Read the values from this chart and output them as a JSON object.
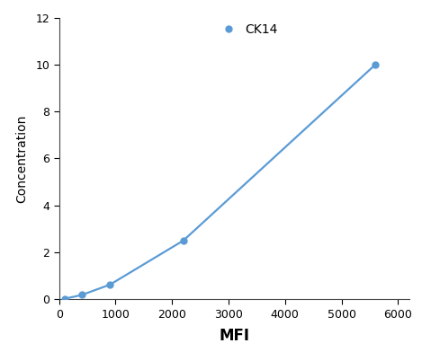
{
  "x": [
    100,
    400,
    900,
    2200,
    5600
  ],
  "y": [
    0.02,
    0.18,
    0.62,
    2.5,
    10.0
  ],
  "line_color": "#5B9BD5",
  "marker_color": "#5B9BD5",
  "marker_size": 5,
  "line_width": 1.6,
  "xlabel": "MFI",
  "ylabel": "Concentration",
  "xlabel_fontsize": 12,
  "ylabel_fontsize": 10,
  "legend_label": "CK14",
  "legend_fontsize": 10,
  "xlim": [
    0,
    6200
  ],
  "ylim": [
    0,
    12
  ],
  "xticks": [
    0,
    1000,
    2000,
    3000,
    4000,
    5000,
    6000
  ],
  "yticks": [
    0,
    2,
    4,
    6,
    8,
    10,
    12
  ],
  "tick_fontsize": 9,
  "background_color": "#ffffff",
  "spine_color": "#444444"
}
